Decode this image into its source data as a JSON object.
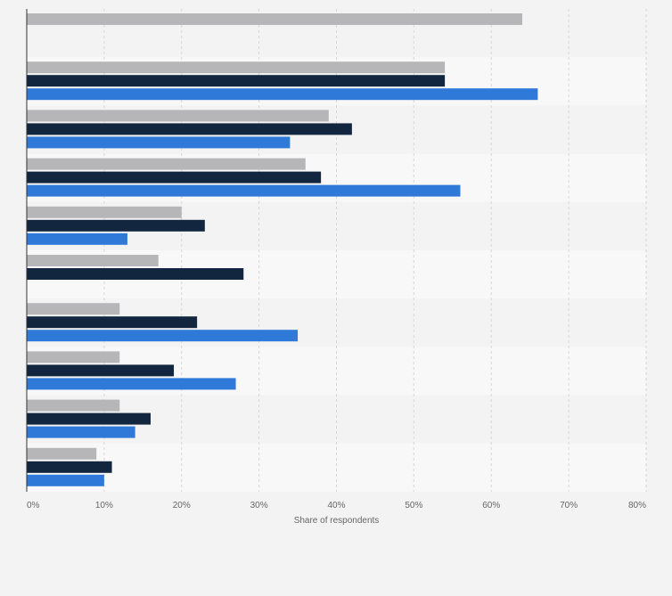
{
  "chart_data": {
    "type": "bar",
    "orientation": "horizontal",
    "xlabel": "Share of respondents",
    "xlim": [
      0,
      80
    ],
    "xticks": [
      "0%",
      "10%",
      "20%",
      "30%",
      "40%",
      "50%",
      "60%",
      "70%",
      "80%"
    ],
    "grid": true,
    "category_count": 10,
    "series": [
      {
        "color": "#b6b6b8",
        "values": [
          64,
          54,
          39,
          36,
          20,
          17,
          12,
          12,
          12,
          9
        ]
      },
      {
        "color": "#12273f",
        "values": [
          null,
          54,
          42,
          38,
          23,
          28,
          22,
          19,
          16,
          11
        ]
      },
      {
        "color": "#2f79d9",
        "values": [
          null,
          66,
          34,
          56,
          13,
          null,
          35,
          27,
          14,
          10
        ]
      }
    ]
  }
}
